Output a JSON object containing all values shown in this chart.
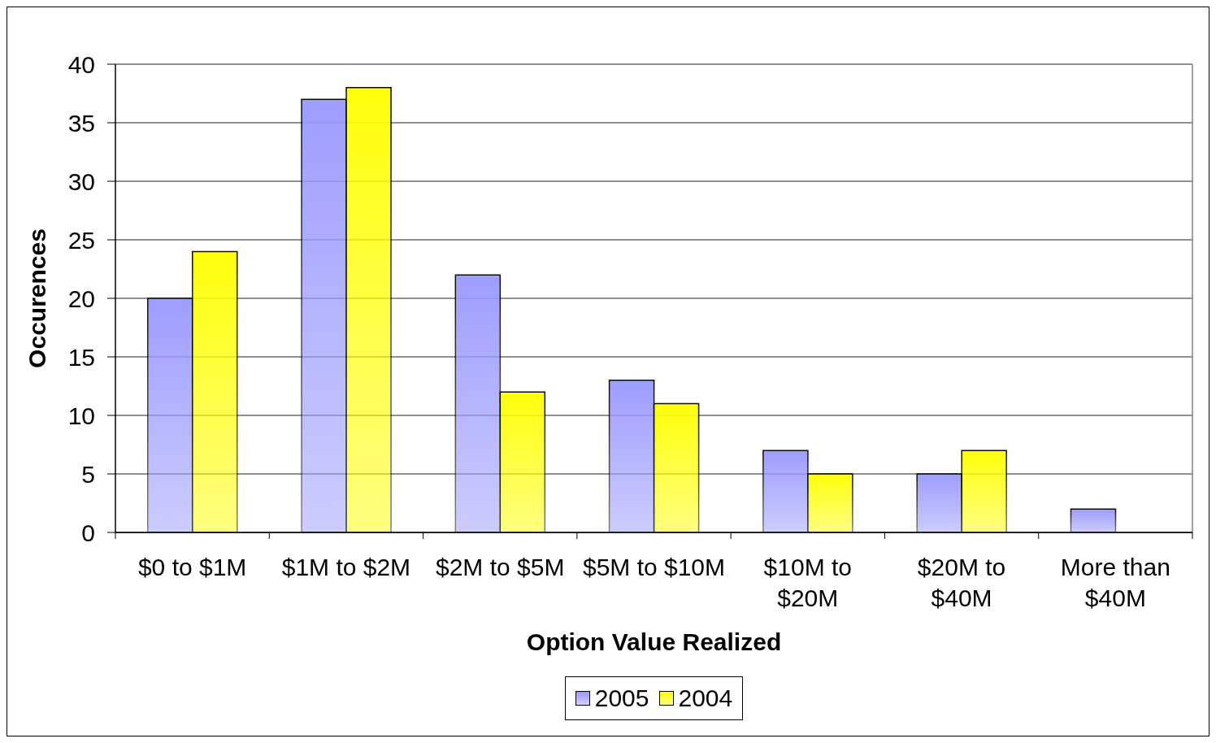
{
  "chart_data": {
    "type": "bar",
    "xlabel": "Option Value Realized",
    "ylabel": "Occurences",
    "categories": [
      "$0 to $1M",
      "$1M to $2M",
      "$2M to $5M",
      "$5M to $10M",
      "$10M to $20M",
      "$20M to $40M",
      "More than $40M"
    ],
    "series": [
      {
        "name": "2005",
        "color": "#9999ff",
        "values": [
          20,
          37,
          22,
          13,
          7,
          5,
          2
        ]
      },
      {
        "name": "2004",
        "color": "#ffff00",
        "values": [
          24,
          38,
          12,
          11,
          5,
          7,
          null
        ]
      }
    ],
    "ylim": [
      0,
      40
    ],
    "yticks": [
      0,
      5,
      10,
      15,
      20,
      25,
      30,
      35,
      40
    ],
    "grid": "y",
    "legend": "bottom"
  }
}
